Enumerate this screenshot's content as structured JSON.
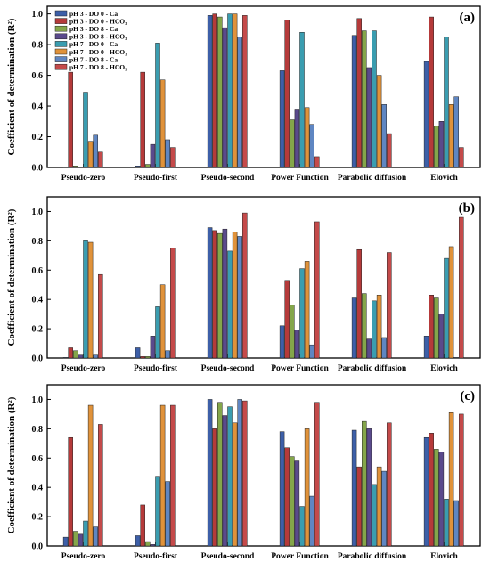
{
  "figure": {
    "legend_entries": [
      {
        "label": "pH 3 - DO 0 - Ca",
        "color": "#3d5fa8"
      },
      {
        "label": "pH 3 - DO 0 - HCO₃",
        "color": "#b53a3a"
      },
      {
        "label": "pH 3 - DO 8 - Ca",
        "color": "#84a64a"
      },
      {
        "label": "pH 3 - DO 8 - HCO₃",
        "color": "#5a4a8c"
      },
      {
        "label": "pH 7 - DO 0 - Ca",
        "color": "#3a9db0"
      },
      {
        "label": "pH 7 - DO 0 - HCO₃",
        "color": "#e0923a"
      },
      {
        "label": "pH 7 - DO 8 - Ca",
        "color": "#5f86c2"
      },
      {
        "label": "pH 7 - DO 8 - HCO₃",
        "color": "#c44a4a"
      }
    ]
  },
  "chart_data": [
    {
      "type": "bar",
      "panel_label": "(a)",
      "ylabel": "Coefficient of determination (R²)",
      "ylim": [
        0,
        1.05
      ],
      "yticks": [
        "0.0",
        "0.2",
        "0.4",
        "0.6",
        "0.8",
        "1.0"
      ],
      "grid": false,
      "legend": "top-left",
      "categories": [
        "Pseudo-zero",
        "Pseudo-first",
        "Pseudo-second",
        "Power Function",
        "Parabolic diffusion",
        "Elovich"
      ],
      "series": [
        {
          "name": "pH 3 - DO 0 - Ca",
          "values": [
            0.0,
            0.01,
            0.99,
            0.63,
            0.86,
            0.69
          ]
        },
        {
          "name": "pH 3 - DO 0 - HCO₃",
          "values": [
            0.62,
            0.62,
            1.0,
            0.96,
            0.97,
            0.98
          ]
        },
        {
          "name": "pH 3 - DO 8 - Ca",
          "values": [
            0.01,
            0.02,
            0.98,
            0.31,
            0.89,
            0.27
          ]
        },
        {
          "name": "pH 3 - DO 8 - HCO₃",
          "values": [
            0.0,
            0.15,
            0.91,
            0.38,
            0.65,
            0.3
          ]
        },
        {
          "name": "pH 7 - DO 0 - Ca",
          "values": [
            0.49,
            0.81,
            1.0,
            0.88,
            0.89,
            0.85
          ]
        },
        {
          "name": "pH 7 - DO 0 - HCO₃",
          "values": [
            0.17,
            0.57,
            1.0,
            0.39,
            0.6,
            0.41
          ]
        },
        {
          "name": "pH 7 - DO 8 - Ca",
          "values": [
            0.21,
            0.18,
            0.85,
            0.28,
            0.41,
            0.46
          ]
        },
        {
          "name": "pH 7 - DO 8 - HCO₃",
          "values": [
            0.1,
            0.13,
            0.99,
            0.07,
            0.22,
            0.13
          ]
        }
      ]
    },
    {
      "type": "bar",
      "panel_label": "(b)",
      "ylabel": "Coefficient of determination (R²)",
      "ylim": [
        0,
        1.1
      ],
      "yticks": [
        "0.0",
        "0.2",
        "0.4",
        "0.6",
        "0.8",
        "1.0"
      ],
      "grid": false,
      "categories": [
        "Pseudo-zero",
        "Pseudo-first",
        "Pseudo-second",
        "Power Function",
        "Parabolic diffusion",
        "Elovich"
      ],
      "series": [
        {
          "name": "pH 3 - DO 0 - Ca",
          "values": [
            0.0,
            0.07,
            0.89,
            0.22,
            0.41,
            0.15
          ]
        },
        {
          "name": "pH 3 - DO 0 - HCO₃",
          "values": [
            0.07,
            0.01,
            0.87,
            0.53,
            0.74,
            0.43
          ]
        },
        {
          "name": "pH 3 - DO 8 - Ca",
          "values": [
            0.05,
            0.01,
            0.85,
            0.36,
            0.44,
            0.41
          ]
        },
        {
          "name": "pH 3 - DO 8 - HCO₃",
          "values": [
            0.02,
            0.15,
            0.88,
            0.19,
            0.13,
            0.3
          ]
        },
        {
          "name": "pH 7 - DO 0 - Ca",
          "values": [
            0.8,
            0.35,
            0.73,
            0.61,
            0.39,
            0.68
          ]
        },
        {
          "name": "pH 7 - DO 0 - HCO₃",
          "values": [
            0.79,
            0.5,
            0.86,
            0.66,
            0.43,
            0.76
          ]
        },
        {
          "name": "pH 7 - DO 8 - Ca",
          "values": [
            0.02,
            0.05,
            0.83,
            0.09,
            0.14,
            0.0
          ]
        },
        {
          "name": "pH 7 - DO 8 - HCO₃",
          "values": [
            0.57,
            0.75,
            0.99,
            0.93,
            0.72,
            0.96
          ]
        }
      ]
    },
    {
      "type": "bar",
      "panel_label": "(c)",
      "ylabel": "Coefficient of determination (R²)",
      "ylim": [
        0,
        1.1
      ],
      "yticks": [
        "0.0",
        "0.2",
        "0.4",
        "0.6",
        "0.8",
        "1.0"
      ],
      "grid": false,
      "categories": [
        "Pseudo-zero",
        "Pseudo-first",
        "Pseudo-second",
        "Power Function",
        "Parabolic diffusion",
        "Elovich"
      ],
      "series": [
        {
          "name": "pH 3 - DO 0 - Ca",
          "values": [
            0.06,
            0.07,
            1.0,
            0.78,
            0.79,
            0.74
          ]
        },
        {
          "name": "pH 3 - DO 0 - HCO₃",
          "values": [
            0.74,
            0.28,
            0.8,
            0.67,
            0.54,
            0.77
          ]
        },
        {
          "name": "pH 3 - DO 8 - Ca",
          "values": [
            0.1,
            0.03,
            0.98,
            0.61,
            0.85,
            0.66
          ]
        },
        {
          "name": "pH 3 - DO 8 - HCO₃",
          "values": [
            0.08,
            0.01,
            0.89,
            0.58,
            0.8,
            0.64
          ]
        },
        {
          "name": "pH 7 - DO 0 - Ca",
          "values": [
            0.17,
            0.47,
            0.95,
            0.27,
            0.42,
            0.32
          ]
        },
        {
          "name": "pH 7 - DO 0 - HCO₃",
          "values": [
            0.96,
            0.96,
            0.84,
            0.8,
            0.54,
            0.91
          ]
        },
        {
          "name": "pH 7 - DO 8 - Ca",
          "values": [
            0.13,
            0.44,
            1.0,
            0.34,
            0.51,
            0.31
          ]
        },
        {
          "name": "pH 7 - DO 8 - HCO₃",
          "values": [
            0.83,
            0.96,
            0.99,
            0.98,
            0.84,
            0.9
          ]
        }
      ]
    }
  ]
}
